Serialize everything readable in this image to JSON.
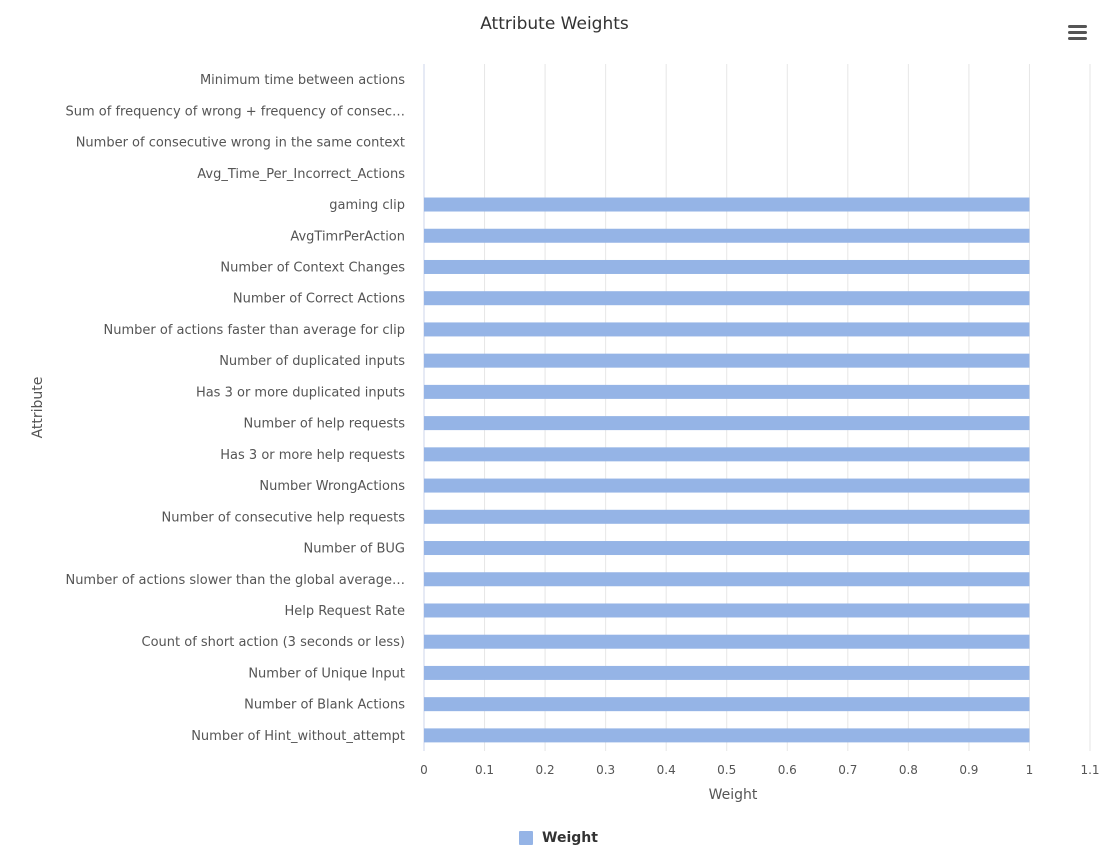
{
  "chart_data": {
    "type": "bar",
    "orientation": "horizontal",
    "title": "Attribute Weights",
    "xlabel": "Weight",
    "ylabel": "Attribute",
    "xlim": [
      0,
      1.1
    ],
    "xticks": [
      "0",
      "0.1",
      "0.2",
      "0.3",
      "0.4",
      "0.5",
      "0.6",
      "0.7",
      "0.8",
      "0.9",
      "1",
      "1.1"
    ],
    "grid": "vertical",
    "legend_position": "bottom-center",
    "bar_color": "#95b4e6",
    "categories": [
      "Minimum time between actions",
      "Sum of frequency of wrong + frequency of consec…",
      "Number of consecutive wrong in the same context",
      "Avg_Time_Per_Incorrect_Actions",
      "gaming clip",
      "AvgTimrPerAction",
      "Number of Context Changes",
      "Number of Correct Actions",
      "Number of actions faster than average for clip",
      "Number of duplicated inputs",
      "Has 3 or more duplicated inputs",
      "Number of help requests",
      "Has 3 or more help requests",
      "Number WrongActions",
      "Number of consecutive help requests",
      "Number of BUG",
      "Number of actions slower than the global average…",
      "Help Request Rate",
      "Count of short action (3 seconds or less)",
      "Number of Unique Input",
      "Number of Blank Actions",
      "Number of Hint_without_attempt"
    ],
    "series": [
      {
        "name": "Weight",
        "values": [
          0,
          0,
          0,
          0,
          1,
          1,
          1,
          1,
          1,
          1,
          1,
          1,
          1,
          1,
          1,
          1,
          1,
          1,
          1,
          1,
          1,
          1
        ]
      }
    ]
  },
  "toolbar": {
    "menu_icon": "hamburger-menu-icon"
  }
}
